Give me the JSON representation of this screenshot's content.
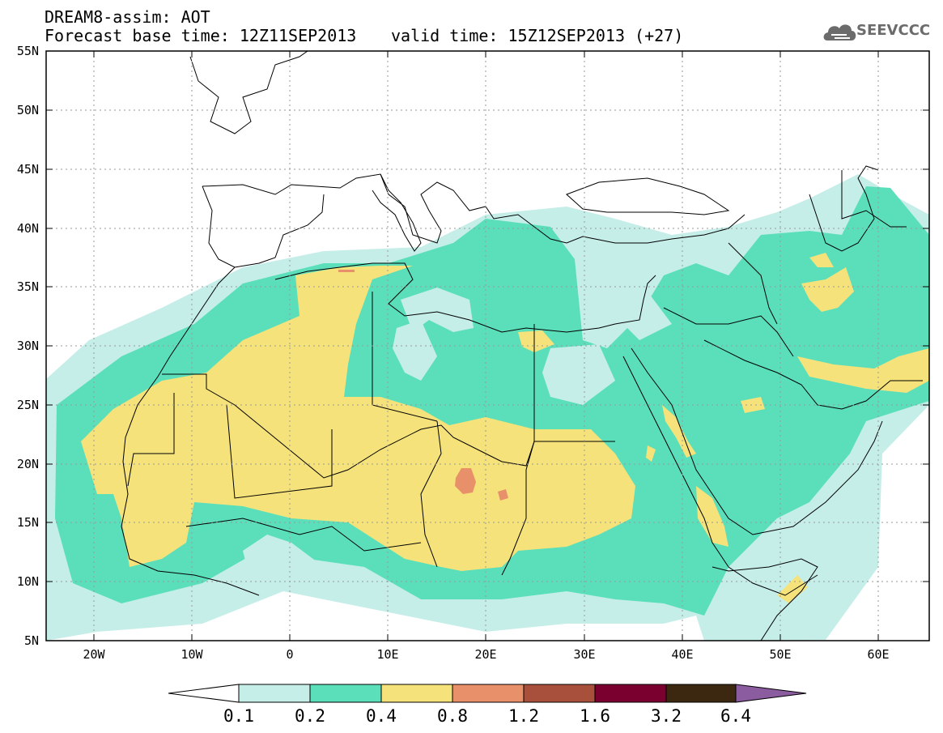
{
  "title": {
    "line1": "DREAM8-assim: AOT",
    "base_time": "Forecast base time: 12Z11SEP2013",
    "valid_time": "valid time: 15Z12SEP2013 (+27)"
  },
  "logo": {
    "text": "SEEVCCC",
    "icon": "cloud-icon"
  },
  "map": {
    "variable": "AOT",
    "projection": "lat-lon",
    "lon_range": [
      -25,
      65
    ],
    "lat_range": [
      5,
      55
    ],
    "lat_labels": [
      "55N",
      "50N",
      "45N",
      "40N",
      "35N",
      "30N",
      "25N",
      "20N",
      "15N",
      "10N",
      "5N"
    ],
    "lon_labels": [
      "20W",
      "10W",
      "0",
      "10E",
      "20E",
      "30E",
      "40E",
      "50E",
      "60E"
    ],
    "grid": "dotted"
  },
  "colorbar": {
    "labels": [
      "0.1",
      "0.2",
      "0.4",
      "0.8",
      "1.2",
      "1.6",
      "3.2",
      "6.4"
    ],
    "colors": [
      "#ffffff",
      "#c6eee9",
      "#5bdfbb",
      "#f5e27a",
      "#e8906a",
      "#a8503c",
      "#7a0030",
      "#3c2810",
      "#8c5ca0"
    ]
  }
}
